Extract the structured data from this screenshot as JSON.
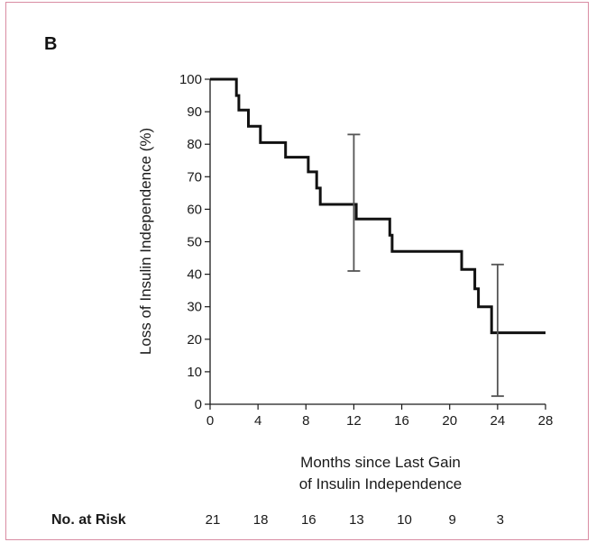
{
  "panel_label": "B",
  "risk_label": "No. at Risk",
  "colors": {
    "frame": "#d98ca3",
    "curve": "#111111",
    "error_bar": "#555555",
    "axis": "#1a1a1a"
  },
  "chart_data": {
    "type": "line",
    "subtype": "kaplan-meier step curve",
    "xlabel_lines": [
      "Months since Last Gain",
      "of Insulin Independence"
    ],
    "ylabel": "Loss of Insulin Independence (%)",
    "xlim": [
      0,
      28
    ],
    "ylim": [
      0,
      100
    ],
    "xticks": [
      0,
      4,
      8,
      12,
      16,
      20,
      24,
      28
    ],
    "yticks": [
      0,
      10,
      20,
      30,
      40,
      50,
      60,
      70,
      80,
      90,
      100
    ],
    "grid": false,
    "series": [
      {
        "x": [
          0,
          2,
          2.2,
          2.4,
          3.2,
          4.2,
          6.3,
          8.2,
          8.9,
          9.2,
          12.2,
          15,
          15.2,
          21,
          22.1,
          22.4,
          23.5,
          28
        ],
        "y": [
          100,
          100,
          95,
          90.5,
          85.5,
          80.5,
          76,
          71.5,
          66.5,
          61.5,
          57,
          52,
          47,
          41.5,
          35.5,
          30,
          22,
          22
        ]
      }
    ],
    "error_bars": [
      {
        "x": 12,
        "low": 41,
        "high": 83
      },
      {
        "x": 24,
        "low": 2.5,
        "high": 43
      }
    ],
    "number_at_risk": [
      {
        "x": 0,
        "n": "21"
      },
      {
        "x": 4,
        "n": "18"
      },
      {
        "x": 8,
        "n": "16"
      },
      {
        "x": 12,
        "n": "13"
      },
      {
        "x": 16,
        "n": "10"
      },
      {
        "x": 20,
        "n": "9"
      },
      {
        "x": 24,
        "n": "3"
      }
    ]
  }
}
